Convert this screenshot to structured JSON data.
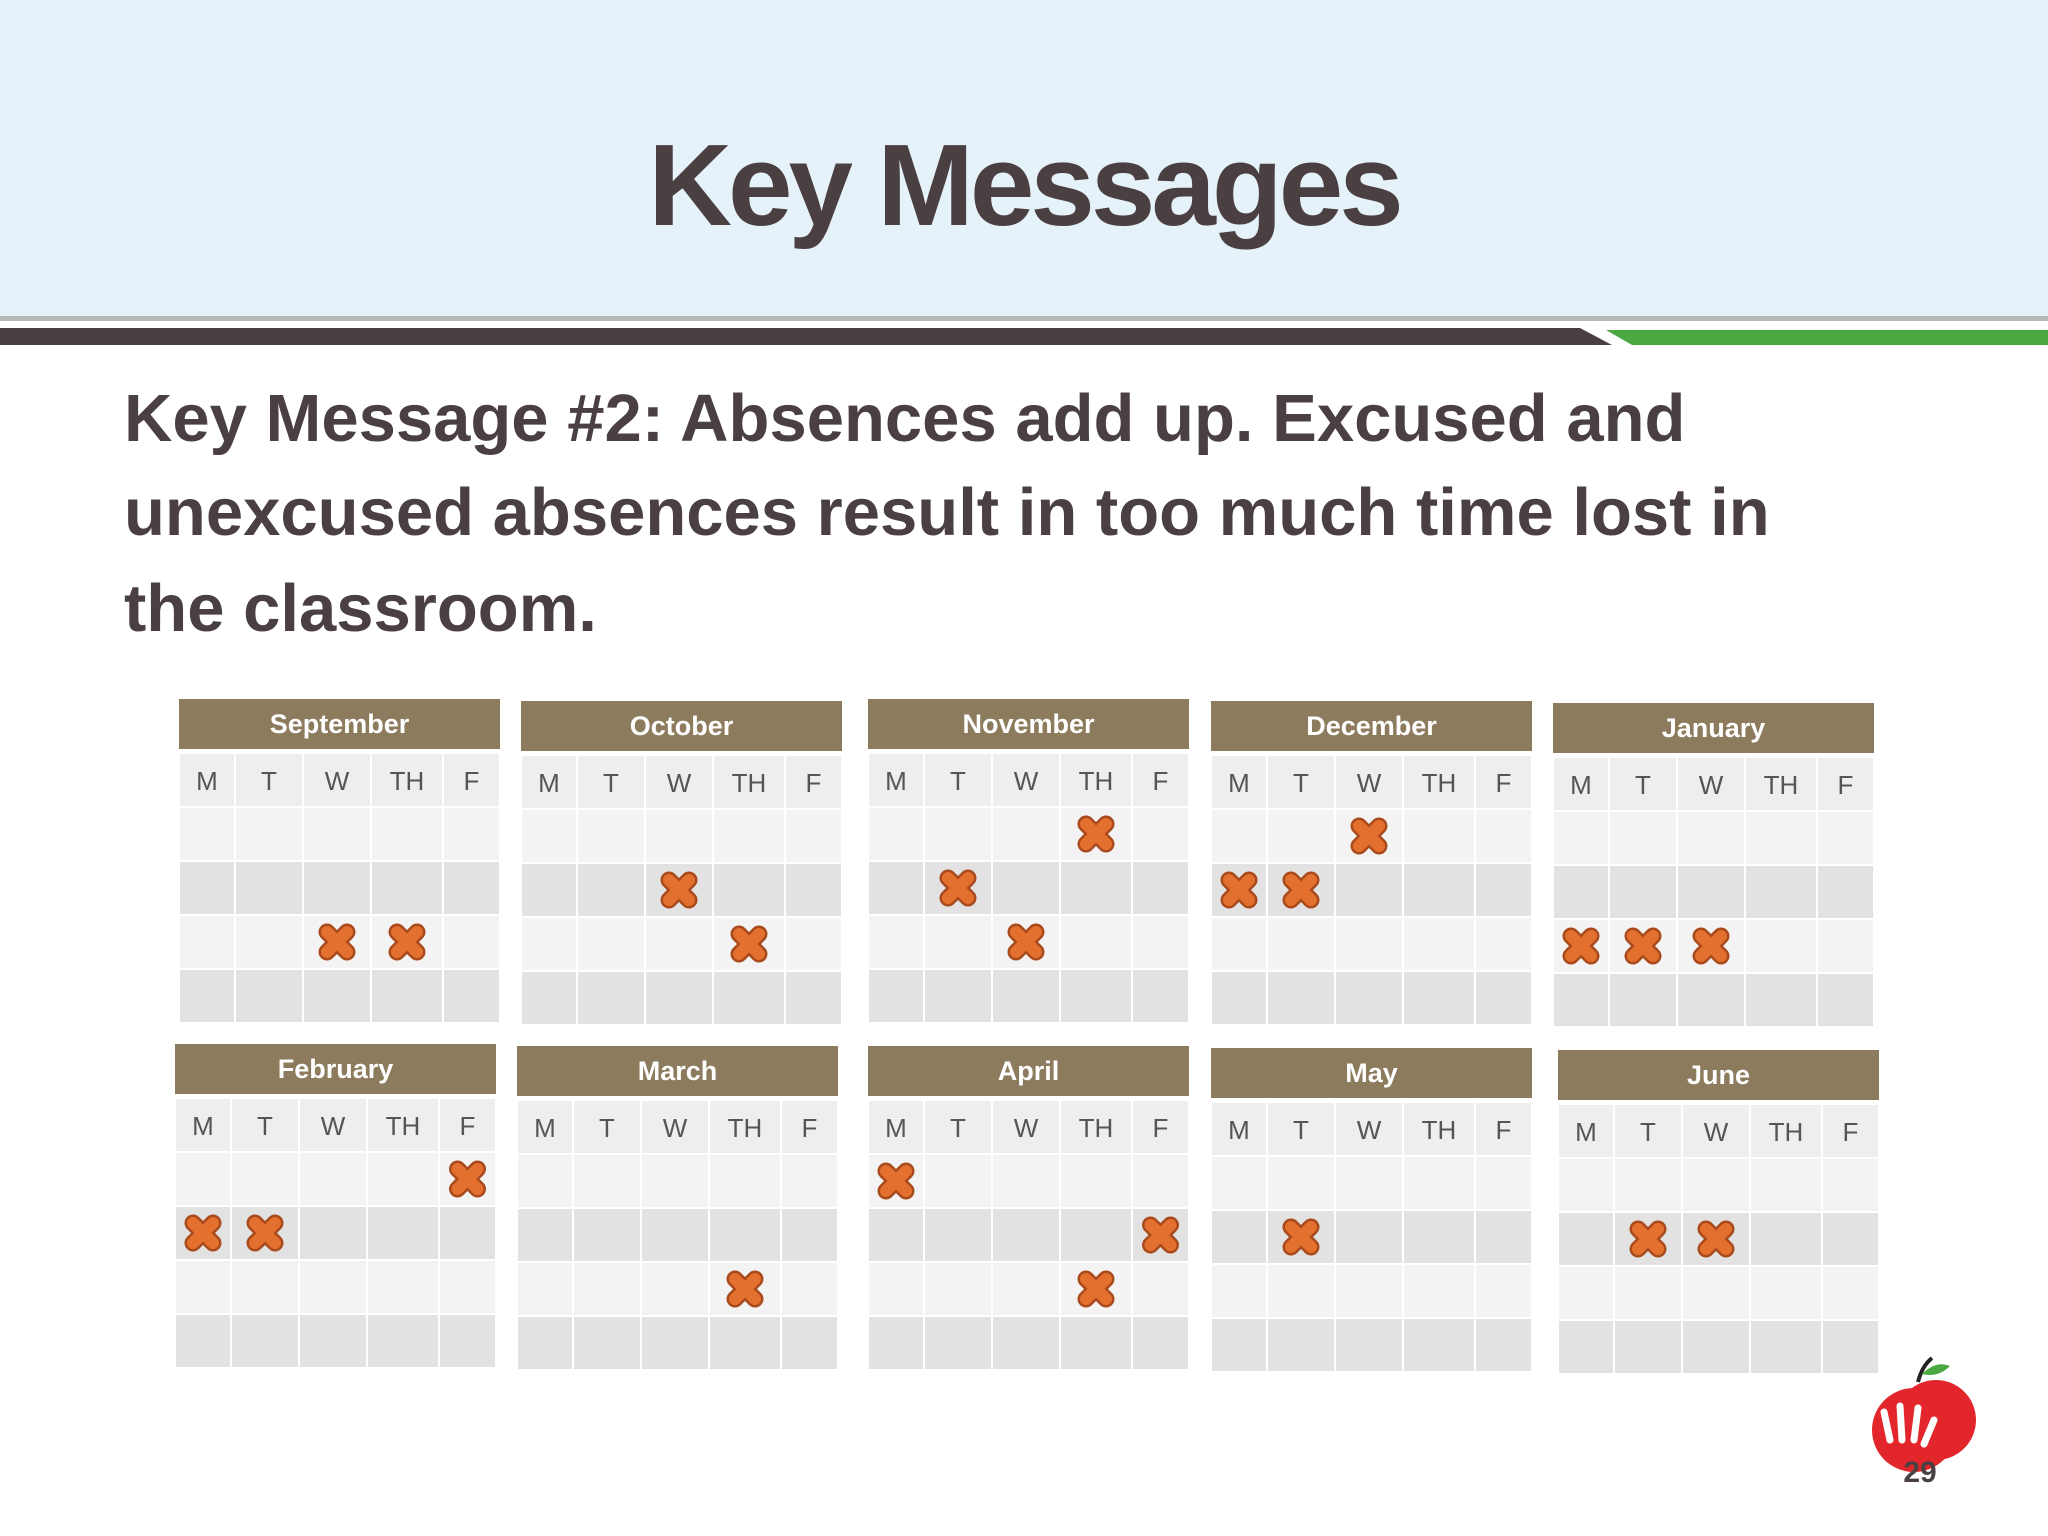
{
  "header": {
    "title": "Key Messages"
  },
  "body": {
    "lines": [
      "Key Message #2:  Absences add up. Excused and",
      "unexcused absences result in too much time lost in",
      "the classroom."
    ]
  },
  "calendar": {
    "weekdays": [
      "M",
      "T",
      "W",
      "TH",
      "F"
    ],
    "months": [
      "September",
      "October",
      "November",
      "December",
      "January",
      "February",
      "March",
      "April",
      "May",
      "June"
    ]
  },
  "footer": {
    "page_number": "29"
  }
}
